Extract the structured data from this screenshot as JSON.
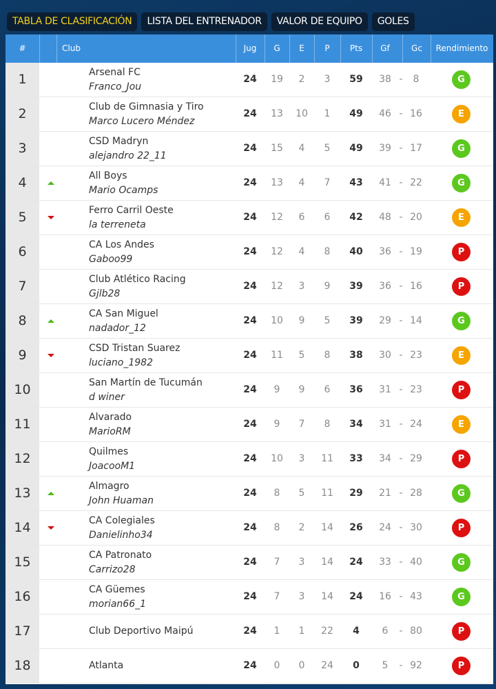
{
  "tabs": [
    "TABLA DE CLASIFICACIÓN",
    "LISTA DEL ENTRENADOR",
    "VALOR DE EQUIPO",
    "GOLES"
  ],
  "active_tab": 0,
  "columns": [
    "#",
    "Club",
    "Jug",
    "G",
    "E",
    "P",
    "Pts",
    "Gf",
    "Gc",
    "Rendimiento"
  ],
  "gf_gc_separator": "-",
  "badge_colors": {
    "G": "#5cc81e",
    "E": "#f5a400",
    "P": "#dd1111"
  },
  "trend_colors": {
    "up": "#4cb81a",
    "down": "#d01010"
  },
  "rows": [
    {
      "pos": 1,
      "club": "Arsenal FC",
      "manager": "Franco_Jou",
      "jug": 24,
      "g": 19,
      "e": 2,
      "p": 3,
      "pts": 59,
      "gf": 38,
      "gc": 8,
      "form": "G"
    },
    {
      "pos": 2,
      "club": "Club de Gimnasia y Tiro",
      "manager": "Marco Lucero Méndez",
      "jug": 24,
      "g": 13,
      "e": 10,
      "p": 1,
      "pts": 49,
      "gf": 46,
      "gc": 16,
      "form": "E"
    },
    {
      "pos": 3,
      "club": "CSD Madryn",
      "manager": "alejandro 22_11",
      "jug": 24,
      "g": 15,
      "e": 4,
      "p": 5,
      "pts": 49,
      "gf": 39,
      "gc": 17,
      "form": "G"
    },
    {
      "pos": 4,
      "trend": "up",
      "club": "All Boys",
      "manager": "Mario Ocamps",
      "jug": 24,
      "g": 13,
      "e": 4,
      "p": 7,
      "pts": 43,
      "gf": 41,
      "gc": 22,
      "form": "G"
    },
    {
      "pos": 5,
      "trend": "down",
      "club": "Ferro Carril Oeste",
      "manager": "la terreneta",
      "jug": 24,
      "g": 12,
      "e": 6,
      "p": 6,
      "pts": 42,
      "gf": 48,
      "gc": 20,
      "form": "E"
    },
    {
      "pos": 6,
      "club": "CA Los Andes",
      "manager": "Gaboo99",
      "jug": 24,
      "g": 12,
      "e": 4,
      "p": 8,
      "pts": 40,
      "gf": 36,
      "gc": 19,
      "form": "P"
    },
    {
      "pos": 7,
      "club": "Club Atlético Racing",
      "manager": "Gjlb28",
      "jug": 24,
      "g": 12,
      "e": 3,
      "p": 9,
      "pts": 39,
      "gf": 36,
      "gc": 16,
      "form": "P"
    },
    {
      "pos": 8,
      "trend": "up",
      "club": "CA San Miguel",
      "manager": "nadador_12",
      "jug": 24,
      "g": 10,
      "e": 9,
      "p": 5,
      "pts": 39,
      "gf": 29,
      "gc": 14,
      "form": "G"
    },
    {
      "pos": 9,
      "trend": "down",
      "club": "CSD Tristan Suarez",
      "manager": "luciano_1982",
      "jug": 24,
      "g": 11,
      "e": 5,
      "p": 8,
      "pts": 38,
      "gf": 30,
      "gc": 23,
      "form": "E"
    },
    {
      "pos": 10,
      "club": "San Martín de Tucumán",
      "manager": "d winer",
      "jug": 24,
      "g": 9,
      "e": 9,
      "p": 6,
      "pts": 36,
      "gf": 31,
      "gc": 23,
      "form": "P"
    },
    {
      "pos": 11,
      "club": "Alvarado",
      "manager": "MarioRM",
      "jug": 24,
      "g": 9,
      "e": 7,
      "p": 8,
      "pts": 34,
      "gf": 31,
      "gc": 24,
      "form": "E"
    },
    {
      "pos": 12,
      "club": "Quilmes",
      "manager": "JoacooM1",
      "jug": 24,
      "g": 10,
      "e": 3,
      "p": 11,
      "pts": 33,
      "gf": 34,
      "gc": 29,
      "form": "P"
    },
    {
      "pos": 13,
      "trend": "up",
      "club": "Almagro",
      "manager": "John Huaman",
      "jug": 24,
      "g": 8,
      "e": 5,
      "p": 11,
      "pts": 29,
      "gf": 21,
      "gc": 28,
      "form": "G"
    },
    {
      "pos": 14,
      "trend": "down",
      "club": "CA Colegiales",
      "manager": "Danielinho34",
      "jug": 24,
      "g": 8,
      "e": 2,
      "p": 14,
      "pts": 26,
      "gf": 24,
      "gc": 30,
      "form": "P"
    },
    {
      "pos": 15,
      "club": "CA Patronato",
      "manager": "Carrizo28",
      "jug": 24,
      "g": 7,
      "e": 3,
      "p": 14,
      "pts": 24,
      "gf": 33,
      "gc": 40,
      "form": "G"
    },
    {
      "pos": 16,
      "club": "CA Güemes",
      "manager": "morian66_1",
      "jug": 24,
      "g": 7,
      "e": 3,
      "p": 14,
      "pts": 24,
      "gf": 16,
      "gc": 43,
      "form": "G"
    },
    {
      "pos": 17,
      "club": "Club Deportivo Maipú",
      "jug": 24,
      "g": 1,
      "e": 1,
      "p": 22,
      "pts": 4,
      "gf": 6,
      "gc": 80,
      "form": "P"
    },
    {
      "pos": 18,
      "club": "Atlanta",
      "jug": 24,
      "g": 0,
      "e": 0,
      "p": 24,
      "pts": 0,
      "gf": 5,
      "gc": 92,
      "form": "P"
    }
  ]
}
